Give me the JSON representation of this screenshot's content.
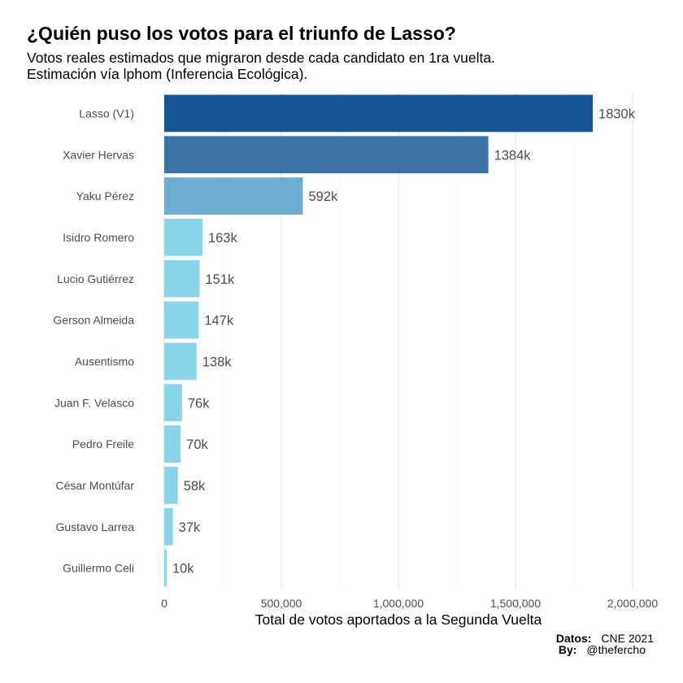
{
  "title": "¿Quién puso los votos para el triunfo de Lasso?",
  "subtitle_line1": "Votos reales estimados que migraron desde cada candidato en 1ra vuelta.",
  "subtitle_line2": "Estimación vía lphom (Inferencia Ecológica).",
  "caption": {
    "datos_label": "Datos:",
    "datos_value": "CNE 2021",
    "by_label": "By:",
    "by_value": "@thefercho"
  },
  "chart_data": {
    "type": "bar",
    "orientation": "horizontal",
    "categories": [
      "Lasso (V1)",
      "Xavier Hervas",
      "Yaku Pérez",
      "Isidro Romero",
      "Lucio Gutiérrez",
      "Gerson Almeida",
      "Ausentismo",
      "Juan F. Velasco",
      "Pedro Freile",
      "César Montúfar",
      "Gustavo Larrea",
      "Guillermo Celi"
    ],
    "values": [
      1830000,
      1384000,
      592000,
      163000,
      151000,
      147000,
      138000,
      76000,
      70000,
      58000,
      37000,
      10000
    ],
    "data_labels": [
      "1830k",
      "1384k",
      "592k",
      "163k",
      "151k",
      "147k",
      "138k",
      "76k",
      "70k",
      "58k",
      "37k",
      "10k"
    ],
    "bar_colors": [
      "#175694",
      "#3b72a8",
      "#6baed1",
      "#89d4e9",
      "#89d4e9",
      "#89d4e9",
      "#89d4e9",
      "#89d4e9",
      "#89d4e9",
      "#89d4e9",
      "#89d4e9",
      "#89d4e9"
    ],
    "xlabel": "Total de votos aportados a la Segunda Vuelta",
    "xlim": [
      0,
      2000000
    ],
    "xticks": [
      0,
      500000,
      1000000,
      1500000,
      2000000
    ],
    "xtick_labels": [
      "0",
      "500,000",
      "1,000,000",
      "1,500,000",
      "2,000,000"
    ],
    "grid": true,
    "legend": "none"
  }
}
